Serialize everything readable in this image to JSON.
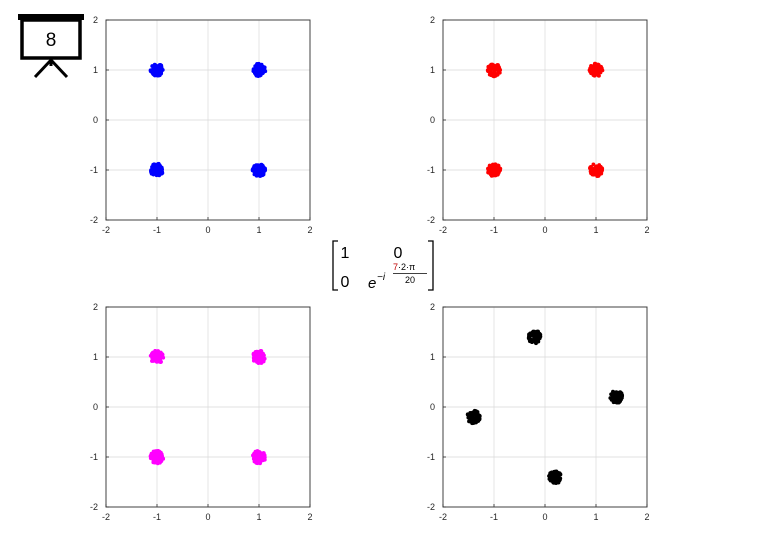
{
  "slide": {
    "number": "8"
  },
  "transform": {
    "row1": [
      "1",
      "0"
    ],
    "row2_first": "0",
    "exp_base": "e",
    "exp_sign": "−i",
    "exp_num_highlight": "7",
    "exp_num_rest": "·2·π",
    "exp_den": "20",
    "highlight_color": "#c00000"
  },
  "chart_data": [
    {
      "type": "scatter",
      "color": "#0000ff",
      "xlim": [
        -2,
        2
      ],
      "ylim": [
        -2,
        2
      ],
      "xticks": [
        "-2",
        "-1",
        "0",
        "1",
        "2"
      ],
      "yticks": [
        "-2",
        "-1",
        "0",
        "1",
        "2"
      ],
      "grid": true,
      "points": [
        [
          -1,
          1
        ],
        [
          1,
          1
        ],
        [
          -1,
          -1
        ],
        [
          1,
          -1
        ]
      ]
    },
    {
      "type": "scatter",
      "color": "#ff0000",
      "xlim": [
        -2,
        2
      ],
      "ylim": [
        -2,
        2
      ],
      "xticks": [
        "-2",
        "-1",
        "0",
        "1",
        "2"
      ],
      "yticks": [
        "-2",
        "-1",
        "0",
        "1",
        "2"
      ],
      "grid": true,
      "points": [
        [
          -1,
          1
        ],
        [
          1,
          1
        ],
        [
          -1,
          -1
        ],
        [
          1,
          -1
        ]
      ]
    },
    {
      "type": "scatter",
      "color": "#ff00ff",
      "xlim": [
        -2,
        2
      ],
      "ylim": [
        -2,
        2
      ],
      "xticks": [
        "-2",
        "-1",
        "0",
        "1",
        "2"
      ],
      "yticks": [
        "-2",
        "-1",
        "0",
        "1",
        "2"
      ],
      "grid": true,
      "points": [
        [
          -1,
          1
        ],
        [
          1,
          1
        ],
        [
          -1,
          -1
        ],
        [
          1,
          -1
        ]
      ]
    },
    {
      "type": "scatter",
      "color": "#000000",
      "xlim": [
        -2,
        2
      ],
      "ylim": [
        -2,
        2
      ],
      "xticks": [
        "-2",
        "-1",
        "0",
        "1",
        "2"
      ],
      "yticks": [
        "-2",
        "-1",
        "0",
        "1",
        "2"
      ],
      "grid": true,
      "points": [
        [
          -0.2,
          1.4
        ],
        [
          1.4,
          0.2
        ],
        [
          -1.4,
          -0.2
        ],
        [
          0.2,
          -1.4
        ]
      ]
    }
  ]
}
